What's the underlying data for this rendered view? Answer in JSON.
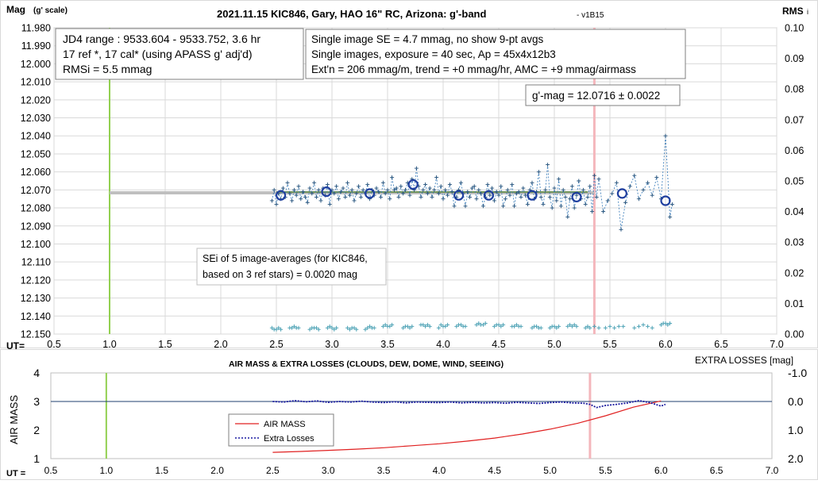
{
  "top_chart": {
    "title": "2021.11.15 KIC846, Gary, HAO 16\" RC, Arizona: g'-band",
    "version": "- v1B15",
    "left_axis_title": "Mag",
    "left_axis_sub": "(g' scale)",
    "right_axis_title": "RMS",
    "right_axis_sub": "i",
    "x_axis_label": "UT=",
    "info_box_1": [
      "JD4 range : 9533.604 - 9533.752,  3.6  hr",
      "17 ref *, 17 cal* (using APASS g' adj'd)",
      "RMSi = 5.5 mmag"
    ],
    "info_box_2": [
      "Single image SE = 4.7 mmag, no show  9-pt avgs",
      "Single images, exposure = 40 sec, Ap = 45x4x12b3",
      "Ext'n = 206 mmag/m, trend = +0 mmag/hr, AMC = +9 mmag/airmass"
    ],
    "result_box": "g'-mag = 12.0716 ± 0.0022",
    "sei_box": [
      "SEi of 5 image-averages (for KIC846,",
      "based on 3 ref stars) = 0.0020 mag"
    ]
  },
  "bottom_chart": {
    "title": "AIR MASS & EXTRA LOSSES (CLOUDS, DEW, DOME, WIND, SEEING)",
    "right_axis_title": "EXTRA LOSSES [mag]",
    "left_axis_title": "AIR MASS",
    "x_axis_label": "UT =",
    "legend": [
      "AIR MASS",
      "Extra Losses"
    ]
  },
  "colors": {
    "green_line": "#92d050",
    "pink_line": "#f4b6bc",
    "mean_line": "#bfbfbf",
    "avg_circles": "#1f3f9f",
    "points": "#2e75b6",
    "rms": "#4fa3b6",
    "airmass": "#e02020",
    "losses": "#1a1aa0"
  },
  "chart_data": [
    {
      "type": "scatter",
      "xlim": [
        0.5,
        7.0
      ],
      "ylim": [
        12.15,
        11.98
      ],
      "y2lim": [
        0.0,
        0.1
      ],
      "x_ticks": [
        "0.5",
        "1.0",
        "1.5",
        "2.0",
        "2.5",
        "3.0",
        "3.5",
        "4.0",
        "4.5",
        "5.0",
        "5.5",
        "6.0",
        "6.5",
        "7.0"
      ],
      "y_ticks": [
        "11.980",
        "11.990",
        "12.000",
        "12.010",
        "12.020",
        "12.030",
        "12.040",
        "12.050",
        "12.060",
        "12.070",
        "12.080",
        "12.090",
        "12.100",
        "12.110",
        "12.120",
        "12.130",
        "12.140",
        "12.150"
      ],
      "y2_ticks": [
        "0.10",
        "0.09",
        "0.08",
        "0.07",
        "0.06",
        "0.05",
        "0.04",
        "0.03",
        "0.02",
        "0.01",
        "0.00"
      ],
      "vertical_markers": [
        1.0,
        5.36
      ],
      "mean_mag": 12.0716,
      "mean_line_x": [
        1.0,
        5.36
      ],
      "fit_line_x": [
        2.5,
        5.3
      ],
      "averages": {
        "x": [
          2.54,
          2.95,
          3.34,
          3.73,
          4.14,
          4.41,
          4.8,
          5.2,
          5.61,
          6.0
        ],
        "y": [
          12.073,
          12.071,
          12.072,
          12.067,
          12.073,
          12.073,
          12.073,
          12.074,
          12.072,
          12.076
        ]
      },
      "singles": {
        "x": [
          2.46,
          2.48,
          2.5,
          2.52,
          2.54,
          2.56,
          2.58,
          2.6,
          2.62,
          2.64,
          2.66,
          2.68,
          2.7,
          2.72,
          2.74,
          2.76,
          2.78,
          2.8,
          2.82,
          2.84,
          2.86,
          2.88,
          2.9,
          2.92,
          2.94,
          2.96,
          2.98,
          3.0,
          3.02,
          3.04,
          3.06,
          3.08,
          3.1,
          3.12,
          3.14,
          3.16,
          3.18,
          3.2,
          3.22,
          3.24,
          3.26,
          3.28,
          3.3,
          3.32,
          3.34,
          3.36,
          3.38,
          3.4,
          3.42,
          3.44,
          3.46,
          3.48,
          3.5,
          3.52,
          3.54,
          3.56,
          3.58,
          3.6,
          3.62,
          3.64,
          3.66,
          3.68,
          3.7,
          3.72,
          3.74,
          3.76,
          3.78,
          3.8,
          3.82,
          3.84,
          3.86,
          3.88,
          3.9,
          3.92,
          3.94,
          3.96,
          3.98,
          4.0,
          4.02,
          4.04,
          4.06,
          4.08,
          4.1,
          4.12,
          4.14,
          4.16,
          4.18,
          4.2,
          4.22,
          4.24,
          4.26,
          4.28,
          4.3,
          4.32,
          4.34,
          4.36,
          4.38,
          4.4,
          4.42,
          4.44,
          4.46,
          4.48,
          4.5,
          4.52,
          4.54,
          4.56,
          4.58,
          4.6,
          4.62,
          4.64,
          4.66,
          4.68,
          4.7,
          4.72,
          4.74,
          4.76,
          4.78,
          4.8,
          4.82,
          4.84,
          4.86,
          4.88,
          4.9,
          4.92,
          4.94,
          4.96,
          4.98,
          5.0,
          5.02,
          5.04,
          5.06,
          5.08,
          5.1,
          5.12,
          5.14,
          5.16,
          5.18,
          5.2,
          5.22,
          5.24,
          5.26,
          5.28,
          5.3,
          5.32,
          5.34,
          5.36,
          5.38,
          5.4,
          5.44,
          5.48,
          5.52,
          5.56,
          5.6,
          5.64,
          5.68,
          5.72,
          5.76,
          5.8,
          5.84,
          5.88,
          5.92,
          5.96,
          6.0,
          6.04,
          6.06
        ],
        "y": [
          12.076,
          12.07,
          12.078,
          12.072,
          12.075,
          12.069,
          12.074,
          12.066,
          12.072,
          12.076,
          12.07,
          12.073,
          12.068,
          12.075,
          12.071,
          12.074,
          12.077,
          12.069,
          12.072,
          12.066,
          12.074,
          12.07,
          12.076,
          12.069,
          12.073,
          12.067,
          12.078,
          12.07,
          12.072,
          12.068,
          12.075,
          12.071,
          12.069,
          12.074,
          12.066,
          12.073,
          12.07,
          12.076,
          12.072,
          12.068,
          12.074,
          12.07,
          12.072,
          12.067,
          12.075,
          12.07,
          12.073,
          12.069,
          12.071,
          12.074,
          12.066,
          12.072,
          12.07,
          12.075,
          12.063,
          12.07,
          12.069,
          12.074,
          12.068,
          12.072,
          12.07,
          12.066,
          12.073,
          12.064,
          12.07,
          12.058,
          12.068,
          12.074,
          12.07,
          12.067,
          12.072,
          12.069,
          12.074,
          12.07,
          12.063,
          12.072,
          12.068,
          12.075,
          12.07,
          12.073,
          12.067,
          12.071,
          12.079,
          12.074,
          12.07,
          12.066,
          12.072,
          12.079,
          12.071,
          12.074,
          12.069,
          12.068,
          12.075,
          12.07,
          12.072,
          12.079,
          12.074,
          12.067,
          12.073,
          12.069,
          12.076,
          12.071,
          12.073,
          12.068,
          12.079,
          12.075,
          12.07,
          12.073,
          12.067,
          12.079,
          12.072,
          12.071,
          12.074,
          12.069,
          12.073,
          12.078,
          12.07,
          12.066,
          12.075,
          12.071,
          12.06,
          12.074,
          12.078,
          12.07,
          12.056,
          12.074,
          12.08,
          12.069,
          12.076,
          12.064,
          12.079,
          12.07,
          12.074,
          12.085,
          12.075,
          12.068,
          12.08,
          12.073,
          12.065,
          12.075,
          12.07,
          12.078,
          12.074,
          12.068,
          12.082,
          12.062,
          12.074,
          12.064,
          12.082,
          12.076,
          12.072,
          12.066,
          12.092,
          12.077,
          12.068,
          12.062,
          12.075,
          12.07,
          12.066,
          12.073,
          12.063,
          12.075,
          12.04,
          12.085,
          12.078
        ]
      },
      "rms": {
        "x": [
          2.46,
          2.48,
          2.5,
          2.52,
          2.54,
          2.62,
          2.64,
          2.66,
          2.68,
          2.7,
          2.8,
          2.82,
          2.84,
          2.86,
          2.88,
          2.96,
          2.98,
          3.0,
          3.02,
          3.04,
          3.14,
          3.16,
          3.18,
          3.2,
          3.22,
          3.3,
          3.32,
          3.34,
          3.36,
          3.38,
          3.46,
          3.48,
          3.5,
          3.52,
          3.54,
          3.64,
          3.66,
          3.68,
          3.7,
          3.72,
          3.8,
          3.82,
          3.84,
          3.86,
          3.88,
          3.96,
          3.98,
          4.0,
          4.02,
          4.04,
          4.12,
          4.14,
          4.16,
          4.18,
          4.2,
          4.3,
          4.32,
          4.34,
          4.36,
          4.38,
          4.46,
          4.48,
          4.5,
          4.52,
          4.54,
          4.62,
          4.64,
          4.66,
          4.68,
          4.7,
          4.8,
          4.82,
          4.84,
          4.86,
          4.88,
          4.96,
          4.98,
          5.0,
          5.02,
          5.04,
          5.12,
          5.14,
          5.16,
          5.18,
          5.2,
          5.28,
          5.3,
          5.32,
          5.36,
          5.4,
          5.46,
          5.5,
          5.54,
          5.58,
          5.62,
          5.72,
          5.76,
          5.8,
          5.84,
          5.88,
          5.96,
          5.98,
          6.0,
          6.02,
          6.04
        ],
        "y": [
          0.002,
          0.0015,
          0.0015,
          0.002,
          0.0015,
          0.002,
          0.002,
          0.0025,
          0.002,
          0.002,
          0.0015,
          0.002,
          0.002,
          0.002,
          0.0015,
          0.002,
          0.0025,
          0.002,
          0.0015,
          0.002,
          0.002,
          0.0015,
          0.002,
          0.002,
          0.0015,
          0.0015,
          0.002,
          0.0025,
          0.002,
          0.002,
          0.0025,
          0.003,
          0.0025,
          0.0025,
          0.003,
          0.002,
          0.0025,
          0.0025,
          0.002,
          0.0025,
          0.003,
          0.003,
          0.0025,
          0.003,
          0.0025,
          0.002,
          0.003,
          0.0025,
          0.0025,
          0.003,
          0.0025,
          0.003,
          0.003,
          0.0025,
          0.0025,
          0.003,
          0.0035,
          0.003,
          0.003,
          0.0035,
          0.0025,
          0.003,
          0.003,
          0.0025,
          0.003,
          0.0025,
          0.0025,
          0.003,
          0.0025,
          0.0025,
          0.002,
          0.0025,
          0.0025,
          0.002,
          0.002,
          0.002,
          0.0025,
          0.0025,
          0.002,
          0.0025,
          0.0025,
          0.003,
          0.0025,
          0.003,
          0.0025,
          0.002,
          0.0025,
          0.002,
          0.0025,
          0.002,
          0.002,
          0.0025,
          0.002,
          0.0025,
          0.0025,
          0.002,
          0.0025,
          0.003,
          0.0025,
          0.002,
          0.003,
          0.0035,
          0.0035,
          0.003,
          0.0035
        ]
      }
    },
    {
      "type": "line",
      "xlim": [
        0.5,
        7.0
      ],
      "ylim": [
        1,
        4
      ],
      "y2lim": [
        -1.0,
        2.0
      ],
      "x_ticks": [
        "0.5",
        "1.0",
        "1.5",
        "2.0",
        "2.5",
        "3.0",
        "3.5",
        "4.0",
        "4.5",
        "5.0",
        "5.5",
        "6.0",
        "6.5",
        "7.0"
      ],
      "y_ticks": [
        "4",
        "3",
        "2",
        "1"
      ],
      "y2_ticks": [
        "-1.0",
        "0.0",
        "1.0",
        "2.0"
      ],
      "vertical_markers": [
        1.0,
        5.36
      ],
      "reference_line_y": 3,
      "series": [
        {
          "name": "AIR MASS",
          "x": [
            2.5,
            2.75,
            3.0,
            3.25,
            3.5,
            3.75,
            4.0,
            4.25,
            4.5,
            4.75,
            5.0,
            5.25,
            5.5,
            5.75,
            6.0
          ],
          "y": [
            1.22,
            1.25,
            1.29,
            1.33,
            1.38,
            1.45,
            1.52,
            1.61,
            1.72,
            1.86,
            2.03,
            2.24,
            2.5,
            2.8,
            3.02
          ]
        },
        {
          "name": "Extra Losses",
          "x": [
            2.5,
            2.6,
            2.7,
            2.8,
            2.9,
            3.0,
            3.1,
            3.2,
            3.3,
            3.4,
            3.5,
            3.6,
            3.7,
            3.8,
            3.9,
            4.0,
            4.1,
            4.2,
            4.3,
            4.4,
            4.5,
            4.6,
            4.7,
            4.8,
            4.9,
            5.0,
            5.1,
            5.2,
            5.3,
            5.36,
            5.42,
            5.5,
            5.6,
            5.7,
            5.8,
            5.9,
            6.0,
            6.04
          ],
          "y": [
            0.0,
            0.02,
            -0.03,
            0.01,
            -0.02,
            0.03,
            0.0,
            0.02,
            -0.01,
            0.02,
            0.04,
            0.01,
            0.05,
            0.02,
            0.03,
            0.04,
            0.02,
            0.05,
            0.03,
            0.05,
            0.04,
            0.06,
            0.03,
            0.05,
            0.07,
            0.04,
            0.02,
            0.05,
            0.06,
            0.1,
            0.21,
            0.14,
            0.1,
            0.05,
            -0.03,
            0.04,
            0.16,
            0.1
          ]
        }
      ]
    }
  ]
}
